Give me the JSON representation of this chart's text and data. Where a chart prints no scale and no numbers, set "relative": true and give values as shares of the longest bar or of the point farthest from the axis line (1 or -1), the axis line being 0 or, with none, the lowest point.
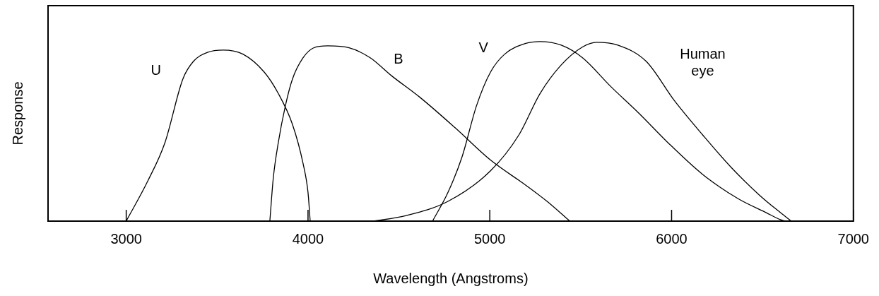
{
  "chart_data": {
    "type": "line",
    "xlabel": "Wavelength (Angstroms)",
    "ylabel": "Response",
    "relative": true,
    "xlim": [
      2570,
      7000
    ],
    "xticks": [
      3000,
      4000,
      5000,
      6000,
      7000
    ],
    "grid": false,
    "legend": false,
    "marker": "none",
    "line_style": "solid",
    "series": [
      {
        "name": "U",
        "color": "#000000",
        "x": [
          3000,
          3117,
          3214,
          3311,
          3370,
          3447,
          3533,
          3642,
          3759,
          3837,
          3914,
          3973,
          4000,
          4012
        ],
        "values": [
          0,
          0.22,
          0.44,
          0.79,
          0.89,
          0.94,
          0.953,
          0.93,
          0.83,
          0.71,
          0.54,
          0.32,
          0.16,
          0
        ]
      },
      {
        "name": "B",
        "color": "#000000",
        "x": [
          3790,
          3809,
          3837,
          3875,
          3914,
          3973,
          4031,
          4109,
          4226,
          4342,
          4459,
          4615,
          4809,
          5004,
          5198,
          5315,
          5440
        ],
        "values": [
          0,
          0.24,
          0.44,
          0.64,
          0.79,
          0.91,
          0.965,
          0.976,
          0.965,
          0.91,
          0.81,
          0.69,
          0.52,
          0.34,
          0.2,
          0.11,
          0
        ]
      },
      {
        "name": "V",
        "color": "#000000",
        "x": [
          4685,
          4770,
          4848,
          4926,
          5004,
          5082,
          5198,
          5276,
          5393,
          5510,
          5665,
          5821,
          5977,
          6171,
          6366,
          6521,
          6599,
          6626
        ],
        "values": [
          0,
          0.16,
          0.36,
          0.64,
          0.83,
          0.93,
          0.99,
          1,
          0.98,
          0.91,
          0.75,
          0.6,
          0.44,
          0.26,
          0.125,
          0.047,
          0.008,
          0
        ]
      },
      {
        "name": "Human eye",
        "color": "#000000",
        "x": [
          4362,
          4537,
          4770,
          5004,
          5160,
          5276,
          5393,
          5510,
          5588,
          5704,
          5860,
          6016,
          6171,
          6327,
          6483,
          6599,
          6658
        ],
        "values": [
          0,
          0.03,
          0.11,
          0.28,
          0.48,
          0.71,
          0.87,
          0.97,
          0.996,
          0.98,
          0.89,
          0.67,
          0.48,
          0.3,
          0.145,
          0.047,
          0
        ]
      }
    ]
  }
}
